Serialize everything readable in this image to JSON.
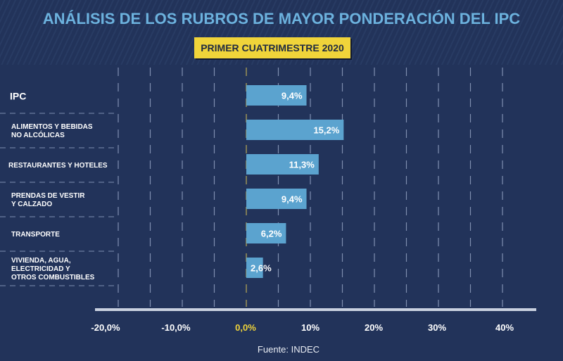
{
  "title": "ANÁLISIS DE LOS RUBROS DE MAYOR PONDERACIÓN DEL IPC",
  "subtitle": "PRIMER CUATRIMESTRE 2020",
  "source": "Fuente: INDEC",
  "colors": {
    "background": "#22335a",
    "bar": "#5ba3cf",
    "title": "#6cb2de",
    "highlight": "#f0d43a"
  },
  "chart_data": {
    "type": "bar",
    "orientation": "horizontal",
    "categories": [
      [
        "IPC"
      ],
      [
        "ALIMENTOS Y BEBIDAS",
        "NO ALCÓLICAS"
      ],
      [
        "RESTAURANTES Y HOTELES"
      ],
      [
        "PRENDAS DE VESTIR",
        "Y CALZADO"
      ],
      [
        "TRANSPORTE"
      ],
      [
        "VIVIENDA, AGUA,",
        "ELECTRICIDAD Y",
        "OTROS COMBUSTIBLES"
      ]
    ],
    "values": [
      9.4,
      15.2,
      11.3,
      9.4,
      6.2,
      2.6
    ],
    "data_labels": [
      "9,4%",
      "15,2%",
      "11,3%",
      "9,4%",
      "6,2%",
      "2,6%"
    ],
    "xlim": [
      -20,
      45
    ],
    "xticks": [
      -20,
      -10,
      0,
      10,
      20,
      30,
      40
    ],
    "xtick_labels": [
      "-20,0%",
      "-10,0%",
      "0,0%",
      "10%",
      "20%",
      "30%",
      "40%"
    ],
    "grid": true,
    "grid_style": "dashed vertical every 5%"
  }
}
